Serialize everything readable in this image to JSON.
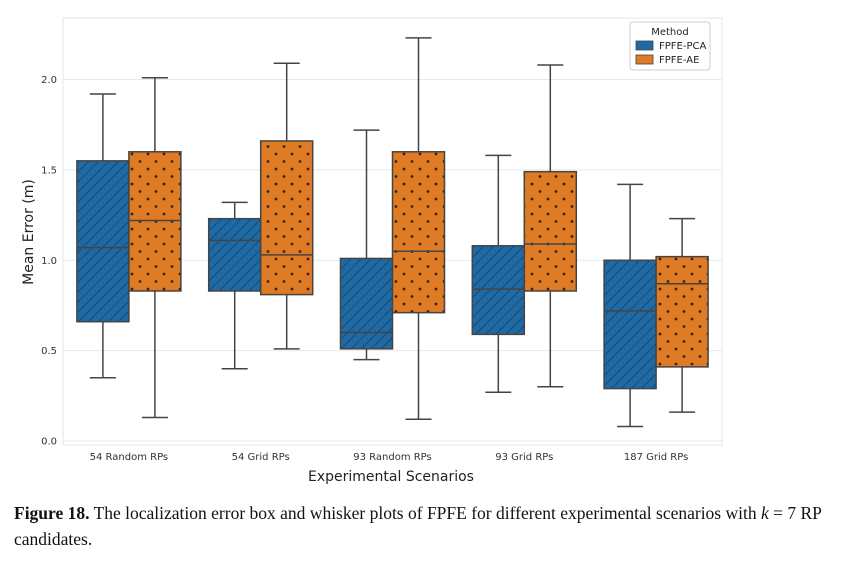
{
  "chart_data": {
    "type": "box",
    "title": "",
    "xlabel": "Experimental Scenarios",
    "ylabel": "Mean Error (m)",
    "ylim": [
      0.0,
      2.3
    ],
    "yticks": [
      "0.0",
      "0.5",
      "1.0",
      "1.5",
      "2.0"
    ],
    "grid": true,
    "legend": {
      "title": "Method",
      "placement": "top-right"
    },
    "categories": [
      "54 Random RPs",
      "54 Grid RPs",
      "93 Random RPs",
      "93 Grid RPs",
      "187 Grid RPs"
    ],
    "series": [
      {
        "name": "FPFE-PCA",
        "color": "#1f6aa5",
        "pattern": "hatch",
        "boxes": [
          {
            "min": 0.35,
            "q1": 0.66,
            "median": 1.07,
            "q3": 1.55,
            "max": 1.92
          },
          {
            "min": 0.4,
            "q1": 0.83,
            "median": 1.11,
            "q3": 1.23,
            "max": 1.32
          },
          {
            "min": 0.45,
            "q1": 0.51,
            "median": 0.6,
            "q3": 1.01,
            "max": 1.72
          },
          {
            "min": 0.27,
            "q1": 0.59,
            "median": 0.84,
            "q3": 1.08,
            "max": 1.58
          },
          {
            "min": 0.08,
            "q1": 0.29,
            "median": 0.72,
            "q3": 1.0,
            "max": 1.42
          }
        ]
      },
      {
        "name": "FPFE-AE",
        "color": "#e07b25",
        "pattern": "dots",
        "boxes": [
          {
            "min": 0.13,
            "q1": 0.83,
            "median": 1.22,
            "q3": 1.6,
            "max": 2.01
          },
          {
            "min": 0.51,
            "q1": 0.81,
            "median": 1.03,
            "q3": 1.66,
            "max": 2.09
          },
          {
            "min": 0.12,
            "q1": 0.71,
            "median": 1.05,
            "q3": 1.6,
            "max": 2.23
          },
          {
            "min": 0.3,
            "q1": 0.83,
            "median": 1.09,
            "q3": 1.49,
            "max": 2.08
          },
          {
            "min": 0.16,
            "q1": 0.41,
            "median": 0.87,
            "q3": 1.02,
            "max": 1.23
          }
        ]
      }
    ]
  },
  "caption": {
    "label": "Figure 18.",
    "text_before_k": " The localization error box and whisker plots of FPFE for different experimental scenarios with ",
    "k_symbol": "k",
    "text_after_k": " = 7 RP candidates."
  }
}
